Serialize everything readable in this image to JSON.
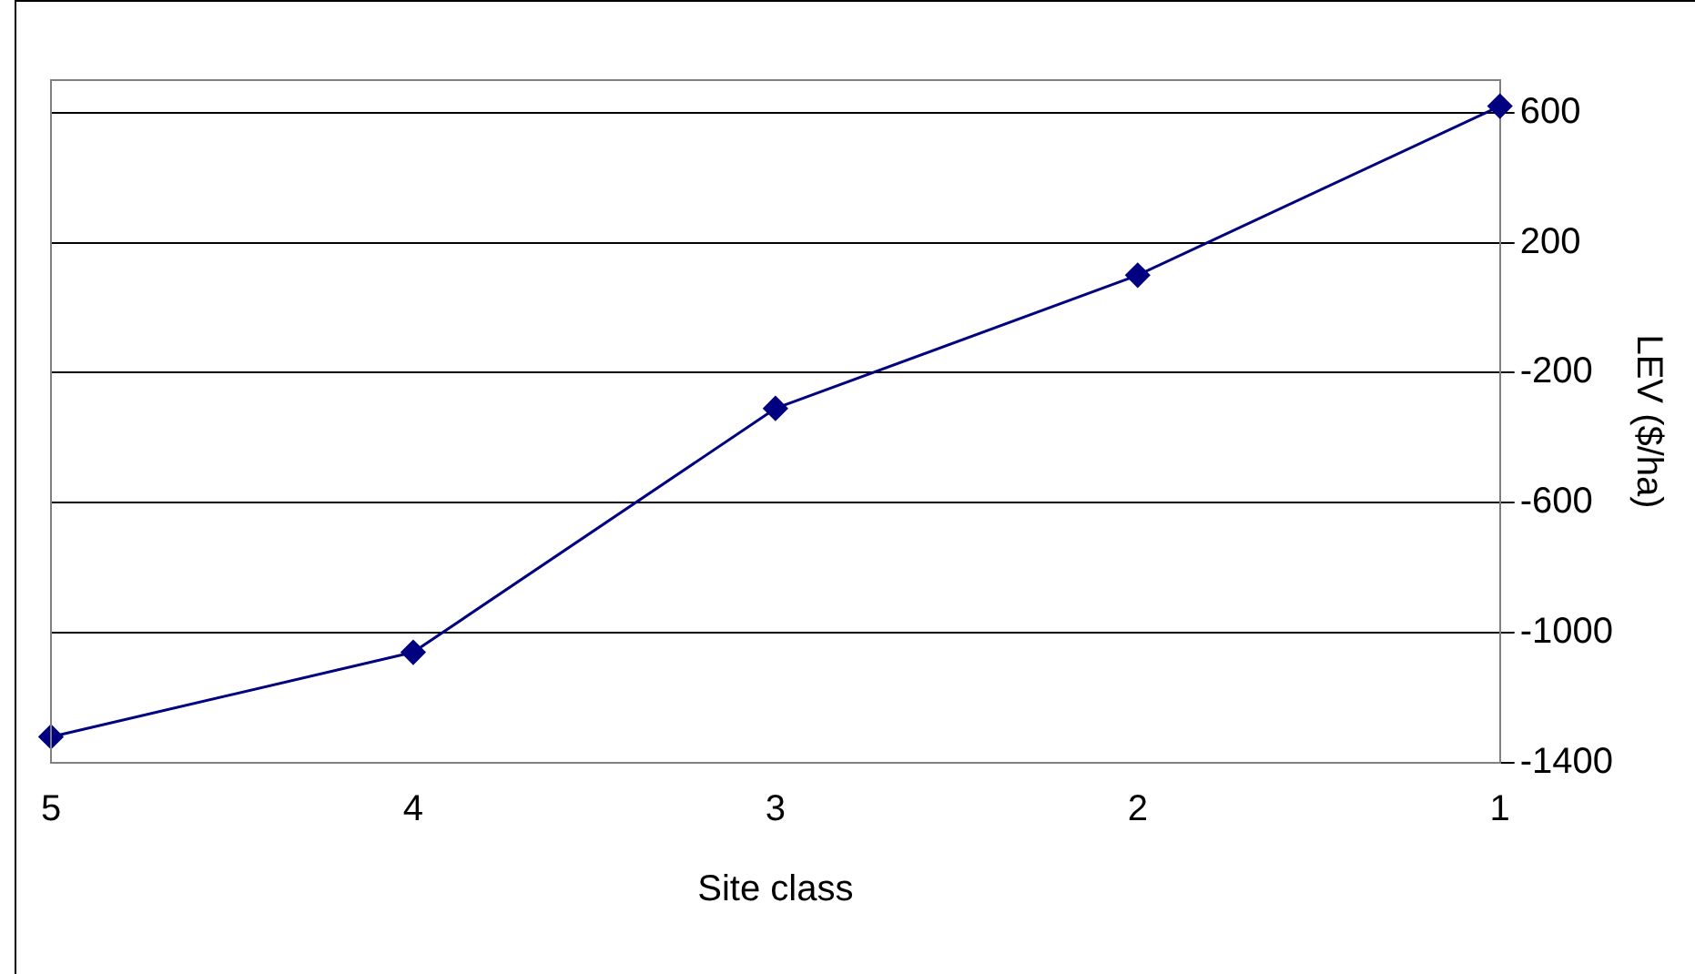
{
  "chart_data": {
    "type": "line",
    "xlabel": "Site class",
    "ylabel": "LEV ($/ha)",
    "categories": [
      "5",
      "4",
      "3",
      "2",
      "1"
    ],
    "series": [
      {
        "color": "#000080",
        "values": [
          -1320,
          -1060,
          -310,
          100,
          620
        ]
      }
    ],
    "ylim": [
      -1400,
      700
    ],
    "yticks": [
      -1400,
      -1000,
      -600,
      -200,
      200,
      600
    ],
    "grid": "y",
    "legend": false,
    "marker": "diamond",
    "line_style": "solid"
  }
}
